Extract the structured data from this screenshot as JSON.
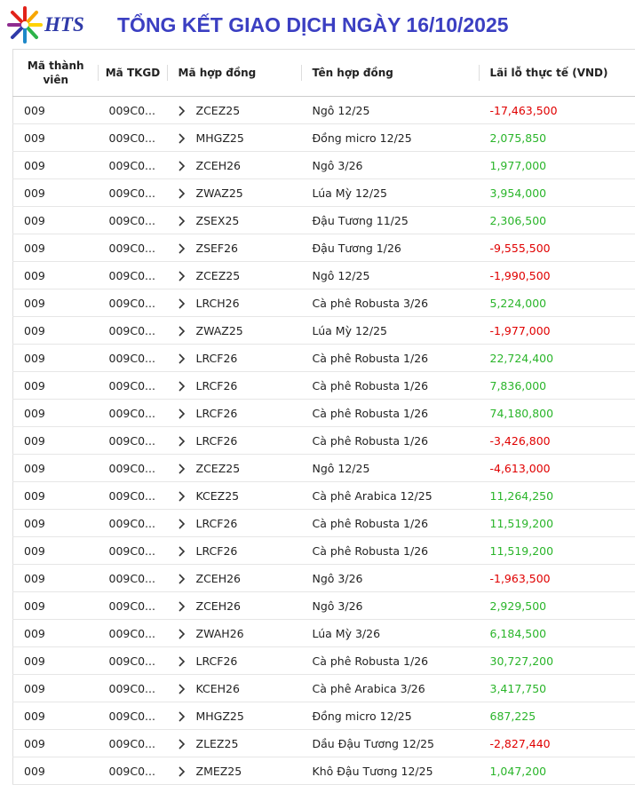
{
  "header": {
    "logo": "HTS",
    "title": "TỔNG KẾT GIAO DỊCH NGÀY 16/10/2025"
  },
  "table": {
    "columns": [
      "Mã thành viên",
      "Mã TKGD",
      "Mã hợp đồng",
      "Tên hợp đồng",
      "Lãi lỗ thực tế (VND)"
    ],
    "rows": [
      [
        "009",
        "009C0...",
        "ZCEZ25",
        "Ngô 12/25",
        "-17,463,500"
      ],
      [
        "009",
        "009C0...",
        "MHGZ25",
        "Đồng micro 12/25",
        "2,075,850"
      ],
      [
        "009",
        "009C0...",
        "ZCEH26",
        "Ngô 3/26",
        "1,977,000"
      ],
      [
        "009",
        "009C0...",
        "ZWAZ25",
        "Lúa Mỳ 12/25",
        "3,954,000"
      ],
      [
        "009",
        "009C0...",
        "ZSEX25",
        "Đậu Tương 11/25",
        "2,306,500"
      ],
      [
        "009",
        "009C0...",
        "ZSEF26",
        "Đậu Tương 1/26",
        "-9,555,500"
      ],
      [
        "009",
        "009C0...",
        "ZCEZ25",
        "Ngô 12/25",
        "-1,990,500"
      ],
      [
        "009",
        "009C0...",
        "LRCH26",
        "Cà phê Robusta 3/26",
        "5,224,000"
      ],
      [
        "009",
        "009C0...",
        "ZWAZ25",
        "Lúa Mỳ 12/25",
        "-1,977,000"
      ],
      [
        "009",
        "009C0...",
        "LRCF26",
        "Cà phê Robusta 1/26",
        "22,724,400"
      ],
      [
        "009",
        "009C0...",
        "LRCF26",
        "Cà phê Robusta 1/26",
        "7,836,000"
      ],
      [
        "009",
        "009C0...",
        "LRCF26",
        "Cà phê Robusta 1/26",
        "74,180,800"
      ],
      [
        "009",
        "009C0...",
        "LRCF26",
        "Cà phê Robusta 1/26",
        "-3,426,800"
      ],
      [
        "009",
        "009C0...",
        "ZCEZ25",
        "Ngô 12/25",
        "-4,613,000"
      ],
      [
        "009",
        "009C0...",
        "KCEZ25",
        "Cà phê Arabica 12/25",
        "11,264,250"
      ],
      [
        "009",
        "009C0...",
        "LRCF26",
        "Cà phê Robusta 1/26",
        "11,519,200"
      ],
      [
        "009",
        "009C0...",
        "LRCF26",
        "Cà phê Robusta 1/26",
        "11,519,200"
      ],
      [
        "009",
        "009C0...",
        "ZCEH26",
        "Ngô 3/26",
        "-1,963,500"
      ],
      [
        "009",
        "009C0...",
        "ZCEH26",
        "Ngô 3/26",
        "2,929,500"
      ],
      [
        "009",
        "009C0...",
        "ZWAH26",
        "Lúa Mỳ 3/26",
        "6,184,500"
      ],
      [
        "009",
        "009C0...",
        "LRCF26",
        "Cà phê Robusta 1/26",
        "30,727,200"
      ],
      [
        "009",
        "009C0...",
        "KCEH26",
        "Cà phê Arabica 3/26",
        "3,417,750"
      ],
      [
        "009",
        "009C0...",
        "MHGZ25",
        "Đồng micro 12/25",
        "687,225"
      ],
      [
        "009",
        "009C0...",
        "ZLEZ25",
        "Dầu Đậu Tương 12/25",
        "-2,827,440"
      ],
      [
        "009",
        "009C0...",
        "ZMEZ25",
        "Khô Đậu Tương 12/25",
        "1,047,200"
      ]
    ]
  }
}
